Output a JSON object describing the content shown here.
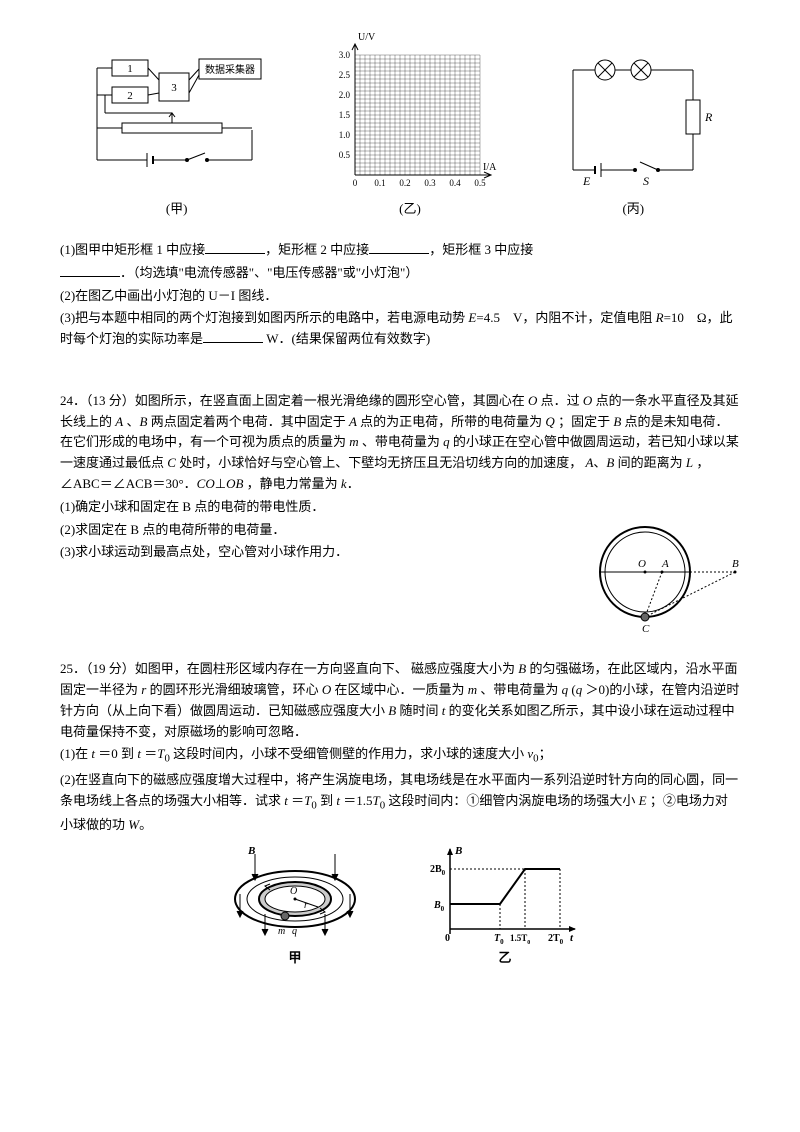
{
  "fig_labels": {
    "jia": "(甲)",
    "yi": "(乙)",
    "bing": "(丙)",
    "jia2": "甲",
    "yi2": "乙"
  },
  "circuit_jia": {
    "box1": "1",
    "box2": "2",
    "box3": "3",
    "collector": "数据采集器"
  },
  "graph_yi": {
    "ylabel": "U/V",
    "xlabel": "I/A",
    "y_ticks": [
      "0.5",
      "1.0",
      "1.5",
      "2.0",
      "2.5",
      "3.0"
    ],
    "x_ticks": [
      "0",
      "0.1",
      "0.2",
      "0.3",
      "0.4",
      "0.5"
    ]
  },
  "circuit_bing": {
    "E": "E",
    "S": "S",
    "R": "R"
  },
  "q23": {
    "p1a": "(1)图甲中矩形框 1 中应接",
    "p1b": "，矩形框 2 中应接",
    "p1c": "，矩形框 3 中应接",
    "p1d": "．（均选填\"电流传感器\"、\"电压传感器\"或\"小灯泡\"）",
    "p2": "(2)在图乙中画出小灯泡的 U－I 图线．",
    "p3a": "(3)把与本题中相同的两个灯泡接到如图丙所示的电路中，若电源电动势 ",
    "p3b": "=4.5　V，内阻不计，定值电阻 ",
    "p3c": "=10　Ω，此时每个灯泡的实际功率是",
    "p3d": " W．(结果保留两位有效数字)",
    "E": "E",
    "R": "R"
  },
  "q24": {
    "num": "24．（13 分）如图所示，在竖直面上固定着一根光滑绝缘的圆形空心管，其圆心在 ",
    "p1": " 点．过 ",
    "p1b": " 点的一条水平直径及其延长线上的 ",
    "p1c": "、",
    "p1d": " 两点固定着两个电荷．其中固定于 ",
    "p1e": " 点的为正电荷，所带的电荷量为 ",
    "p1f": "；固定于 ",
    "p1g": " 点的是未知电荷．在它们形成的电场中，有一个可视为质点的质量为 ",
    "p1h": "、带电荷量为 ",
    "p1i": " 的小球正在空心管中做圆周运动，若已知小球以某一速度通过最低点 ",
    "p1j": " 处时，小球恰好与空心管上、下壁均无挤压且无沿切线方向的加速度，",
    "p1k": "、",
    "p1l": " 间的距离为 ",
    "p1m": "，∠ABC＝∠ACB＝30°．",
    "p1n": "⊥",
    "p1o": "，静电力常量为 ",
    "p1p": "．",
    "O": "O",
    "A": "A",
    "B": "B",
    "C": "C",
    "Q": "Q",
    "m": "m",
    "q": "q",
    "L": "L",
    "k": "k",
    "CO": "CO",
    "OB": "OB",
    "sub1": "(1)确定小球和固定在 B 点的电荷的带电性质．",
    "sub2": "(2)求固定在 B 点的电荷所带的电荷量．",
    "sub3": "(3)求小球运动到最高点处，空心管对小球作用力．"
  },
  "q25": {
    "num": "25．（19 分）如图甲，在圆柱形区域内存在一方向竖直向下、",
    "p1": "磁感应强度大小为 ",
    "p1a": " 的匀强磁场，在此区域内，沿水平面固定一半径为 ",
    "p1b": " 的圆环形光滑细玻璃管，环心 ",
    "p1c": " 在区域中心．一质量为 ",
    "p1d": "、带电荷量为 ",
    "p1e": "(",
    "p1f": "＞0)的小球，在管内沿逆时针方向（从上向下看）做圆周运动．已知磁感应强度大小 ",
    "p1g": " 随时间 ",
    "p1h": " 的变化关系如图乙所示，其中设小球在运动过程中电荷量保持不变，对原磁场的影响可忽略．",
    "B": "B",
    "r": "r",
    "O": "O",
    "m": "m",
    "q": "q",
    "t": "t",
    "sub1a": "(1)在 ",
    "sub1b": "＝0 到 ",
    "sub1c": "＝",
    "sub1d": " 这段时间内，小球不受细管侧壁的作用力，求小球的速度大小 ",
    "sub1e": "；",
    "T0": "T",
    "v0": "v",
    "sub2a": "(2)在竖直向下的磁感应强度增大过程中，将产生涡旋电场，其电场线是在水平面内一系列沿逆时针方向的同心圆，同一条电场线上各点的场强大小相等．试求 ",
    "sub2b": "＝",
    "sub2c": " 到 ",
    "sub2d": "＝1.5",
    "sub2e": " 这段时间内：①细管内涡旋电场的场强大小 ",
    "sub2f": "；②电场力对小球做的功 ",
    "sub2g": "。",
    "E": "E",
    "W": "W"
  },
  "fig24": {
    "O": "O",
    "A": "A",
    "B": "B",
    "C": "C"
  },
  "fig25a": {
    "B": "B",
    "O": "O",
    "r": "r",
    "m": "m",
    "q": "q"
  },
  "fig25b": {
    "ylabel": "B",
    "B0": "B",
    "B0sub": "0",
    "t2B0": "2B",
    "T0": "T",
    "T15": "1.5T",
    "T2": "2T",
    "xlabel": "t",
    "zero": "0"
  }
}
